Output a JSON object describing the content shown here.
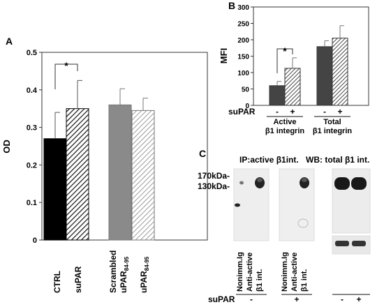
{
  "chart_data": [
    {
      "panel": "A",
      "type": "bar",
      "ylabel": "OD",
      "ylim": [
        0,
        0.5
      ],
      "yticks": [
        "0",
        "0.1",
        "0.2",
        "0.3",
        "0.4",
        "0.5"
      ],
      "categories": [
        {
          "label": "CTRL",
          "value": 0.27,
          "error": 0.07,
          "fill": "solid-black"
        },
        {
          "label": "suPAR",
          "value": 0.35,
          "error": 0.075,
          "fill": "hatch-black"
        },
        {
          "label": "Scrambled",
          "label2": "uPAR",
          "label2_sub": "84-95",
          "value": 0.36,
          "error": 0.043,
          "fill": "solid-gray"
        },
        {
          "label": "uPAR",
          "label_sub": "84-95",
          "value": 0.345,
          "error": 0.033,
          "fill": "hatch-gray"
        }
      ],
      "significance": "*"
    },
    {
      "panel": "B",
      "type": "bar",
      "ylabel": "MFI",
      "ylim": [
        0,
        300
      ],
      "yticks": [
        "0",
        "50",
        "100",
        "150",
        "200",
        "250",
        "300"
      ],
      "condition_label": "suPAR",
      "groups": [
        {
          "label": "Active",
          "label2": "β1 integrin",
          "bars": [
            {
              "condition": "-",
              "value": 60,
              "error": 13,
              "fill": "solid-dark"
            },
            {
              "condition": "+",
              "value": 113,
              "error": 32,
              "fill": "hatch-dark"
            }
          ]
        },
        {
          "label": "Total",
          "label2": "β1 integrin",
          "bars": [
            {
              "condition": "-",
              "value": 179,
              "error": 18,
              "fill": "solid-dark"
            },
            {
              "condition": "+",
              "value": 205,
              "error": 38,
              "fill": "hatch-dark"
            }
          ]
        }
      ],
      "significance": "*"
    },
    {
      "panel": "C",
      "type": "blot",
      "ip_title": "IP:active β1int.",
      "wb_title": "WB: total β1 int.",
      "markers": [
        "170kDa-",
        "130kDa-"
      ],
      "lanes": [
        {
          "label": "Nonimm.Ig",
          "label2": "",
          "supar": "-"
        },
        {
          "label": "Anti-active",
          "label2": "β1 int.",
          "supar": "-"
        },
        {
          "label": "Nonimm.Ig",
          "label2": "",
          "supar": "+"
        },
        {
          "label": "Anti-active",
          "label2": "β1 int.",
          "supar": "+"
        }
      ],
      "wb_lanes": [
        {
          "supar": "-"
        },
        {
          "supar": "+"
        }
      ],
      "condition_label": "suPAR"
    }
  ]
}
